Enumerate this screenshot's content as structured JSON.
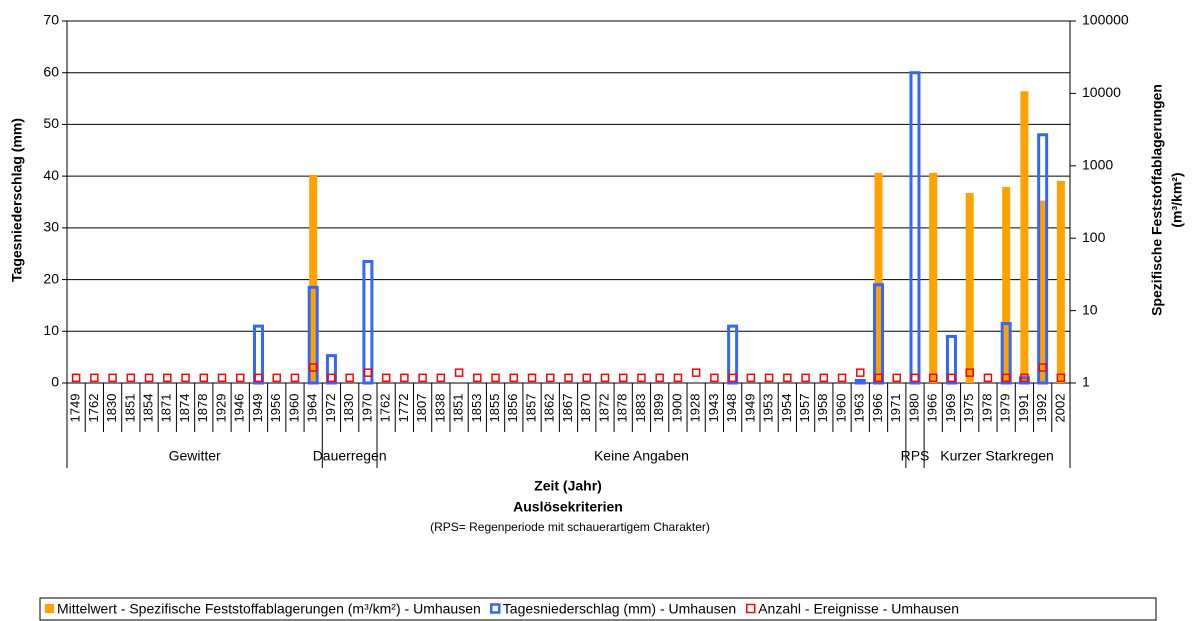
{
  "chart_data": {
    "type": "bar",
    "y_label": "Tagesniederschlag (mm)",
    "y2_label": [
      "Spezifische Feststoffablagerungen",
      "(m³/km²)"
    ],
    "x_label": "Zeit (Jahr)",
    "group_label": "Auslösekriterien",
    "note": "(RPS= Regenperiode mit schauerartigem Charakter)",
    "categories": [
      "1749",
      "1762",
      "1830",
      "1851",
      "1854",
      "1871",
      "1874",
      "1878",
      "1929",
      "1946",
      "1949",
      "1956",
      "1960",
      "1964",
      "1972",
      "1830",
      "1970",
      "1762",
      "1772",
      "1807",
      "1838",
      "1851",
      "1853",
      "1855",
      "1856",
      "1857",
      "1862",
      "1867",
      "1870",
      "1872",
      "1878",
      "1883",
      "1899",
      "1900",
      "1928",
      "1943",
      "1948",
      "1949",
      "1953",
      "1954",
      "1957",
      "1958",
      "1960",
      "1963",
      "1966",
      "1971",
      "1980",
      "1966",
      "1969",
      "1975",
      "1978",
      "1979",
      "1991",
      "1992",
      "2002"
    ],
    "category_groups": [
      "Gewitter",
      "Gewitter",
      "Gewitter",
      "Gewitter",
      "Gewitter",
      "Gewitter",
      "Gewitter",
      "Gewitter",
      "Gewitter",
      "Gewitter",
      "Gewitter",
      "Gewitter",
      "Gewitter",
      "Gewitter",
      "Dauerregen",
      "Dauerregen",
      "Dauerregen",
      "Keine Angaben",
      "Keine Angaben",
      "Keine Angaben",
      "Keine Angaben",
      "Keine Angaben",
      "Keine Angaben",
      "Keine Angaben",
      "Keine Angaben",
      "Keine Angaben",
      "Keine Angaben",
      "Keine Angaben",
      "Keine Angaben",
      "Keine Angaben",
      "Keine Angaben",
      "Keine Angaben",
      "Keine Angaben",
      "Keine Angaben",
      "Keine Angaben",
      "Keine Angaben",
      "Keine Angaben",
      "Keine Angaben",
      "Keine Angaben",
      "Keine Angaben",
      "Keine Angaben",
      "Keine Angaben",
      "Keine Angaben",
      "Keine Angaben",
      "Keine Angaben",
      "Keine Angaben",
      "RPS",
      "Kurzer Starkregen",
      "Kurzer Starkregen",
      "Kurzer Starkregen",
      "Kurzer Starkregen",
      "Kurzer Starkregen",
      "Kurzer Starkregen",
      "Kurzer Starkregen",
      "Kurzer Starkregen"
    ],
    "ylim": [
      0,
      70
    ],
    "yticks": [
      0,
      10,
      20,
      30,
      40,
      50,
      60,
      70
    ],
    "y2lim": [
      1,
      100000
    ],
    "y2ticks": [
      1,
      10,
      100,
      1000,
      10000,
      100000
    ],
    "y2_log": true,
    "grid": true,
    "series": [
      {
        "name": "Mittelwert - Spezifische Feststoffablagerungen (m³/km²) - Umhausen",
        "type": "bar",
        "filled": true,
        "axis": "y2",
        "color": "#ffa200",
        "values": [
          null,
          null,
          null,
          null,
          null,
          null,
          null,
          null,
          null,
          null,
          null,
          null,
          null,
          750,
          null,
          null,
          null,
          null,
          null,
          null,
          null,
          null,
          null,
          null,
          null,
          null,
          null,
          null,
          null,
          null,
          null,
          null,
          null,
          null,
          null,
          null,
          null,
          null,
          null,
          null,
          null,
          null,
          null,
          null,
          800,
          null,
          null,
          800,
          null,
          420,
          null,
          510,
          10700,
          330,
          620
        ]
      },
      {
        "name": "Tagesniederschlag (mm) - Umhausen",
        "type": "bar",
        "filled": false,
        "color": "#3366ff",
        "values": [
          null,
          null,
          null,
          null,
          null,
          null,
          null,
          null,
          null,
          null,
          11,
          null,
          null,
          18.5,
          5.3,
          null,
          23.5,
          null,
          null,
          null,
          null,
          null,
          null,
          null,
          null,
          null,
          null,
          null,
          null,
          null,
          null,
          null,
          null,
          null,
          null,
          null,
          11,
          null,
          null,
          null,
          null,
          null,
          null,
          0.5,
          19,
          null,
          60,
          null,
          9,
          null,
          null,
          11.5,
          1,
          48,
          null
        ]
      },
      {
        "name": "Anzahl - Ereignisse - Umhausen",
        "type": "scatter",
        "filled": false,
        "color": "#ff0000",
        "values": [
          1,
          1,
          1,
          1,
          1,
          1,
          1,
          1,
          1,
          1,
          1,
          1,
          1,
          3,
          1,
          1,
          2,
          1,
          1,
          1,
          1,
          2,
          1,
          1,
          1,
          1,
          1,
          1,
          1,
          1,
          1,
          1,
          1,
          1,
          2,
          1,
          1,
          1,
          1,
          1,
          1,
          1,
          1,
          2,
          1,
          1,
          1,
          1,
          1,
          2,
          1,
          1,
          1,
          3,
          1
        ]
      }
    ]
  }
}
